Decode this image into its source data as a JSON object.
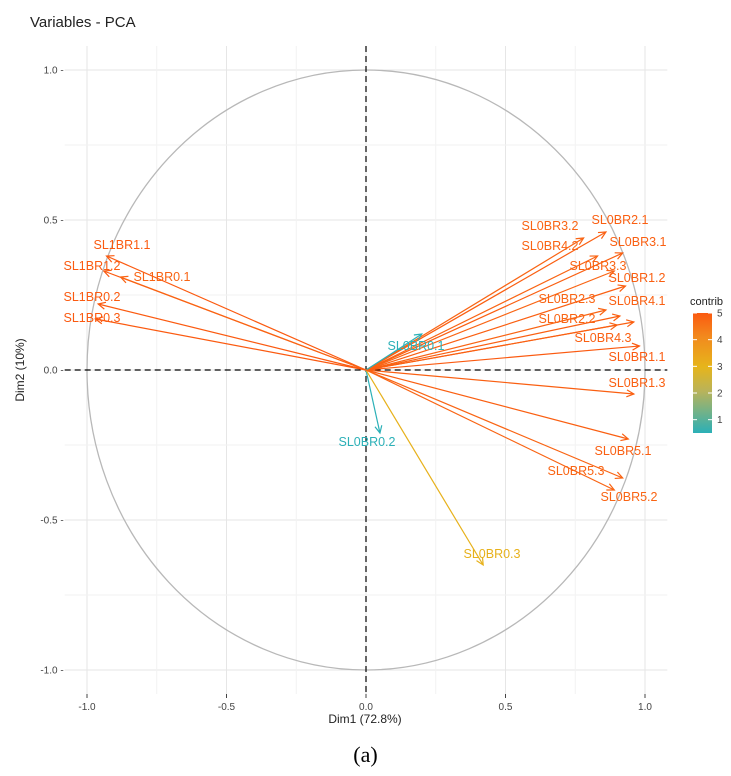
{
  "caption": "(a)",
  "chart_data": {
    "type": "scatter",
    "subtype": "pca-variable-correlation-circle",
    "title": "Variables - PCA",
    "xlabel": "Dim1 (72.8%)",
    "ylabel": "Dim2 (10%)",
    "xlim": [
      -1.08,
      1.08
    ],
    "ylim": [
      -1.08,
      1.08
    ],
    "x_ticks": [
      -1.0,
      -0.5,
      0.0,
      0.5,
      1.0
    ],
    "x_tick_labels": [
      "-1.0",
      "-0.5",
      "0.0",
      "0.5",
      "1.0"
    ],
    "y_ticks": [
      -1.0,
      -0.5,
      0.0,
      0.5,
      1.0
    ],
    "y_tick_labels": [
      "-1.0 -",
      "-0.5 -",
      "0.0 -",
      "0.5 -",
      "1.0 -"
    ],
    "grid": true,
    "legend": {
      "title": "contrib",
      "position": "right",
      "ticks": [
        "1",
        "2",
        "3",
        "4",
        "5"
      ],
      "colors": [
        "#2bb0b7",
        "#b9b35a",
        "#e6b51b",
        "#f28a1e",
        "#fb5a10"
      ]
    },
    "variables": [
      {
        "name": "SL1BR1.1",
        "x": -0.93,
        "y": 0.38,
        "contrib": 5.0
      },
      {
        "name": "SL1BR1.2",
        "x": -0.94,
        "y": 0.33,
        "contrib": 5.0
      },
      {
        "name": "SL1BR0.1",
        "x": -0.88,
        "y": 0.31,
        "contrib": 4.8
      },
      {
        "name": "SL1BR0.2",
        "x": -0.96,
        "y": 0.22,
        "contrib": 5.0
      },
      {
        "name": "SL1BR0.3",
        "x": -0.97,
        "y": 0.17,
        "contrib": 5.0
      },
      {
        "name": "SL0BR3.2",
        "x": 0.78,
        "y": 0.44,
        "contrib": 4.8
      },
      {
        "name": "SL0BR2.1",
        "x": 0.86,
        "y": 0.46,
        "contrib": 4.9
      },
      {
        "name": "SL0BR4.2",
        "x": 0.83,
        "y": 0.38,
        "contrib": 4.8
      },
      {
        "name": "SL0BR3.1",
        "x": 0.92,
        "y": 0.39,
        "contrib": 4.9
      },
      {
        "name": "SL0BR3.3",
        "x": 0.89,
        "y": 0.33,
        "contrib": 4.8
      },
      {
        "name": "SL0BR1.2",
        "x": 0.93,
        "y": 0.28,
        "contrib": 4.9
      },
      {
        "name": "SL0BR2.3",
        "x": 0.86,
        "y": 0.2,
        "contrib": 4.8
      },
      {
        "name": "SL0BR4.1",
        "x": 0.91,
        "y": 0.18,
        "contrib": 4.9
      },
      {
        "name": "SL0BR2.2",
        "x": 0.9,
        "y": 0.15,
        "contrib": 4.8
      },
      {
        "name": "SL0BR4.3",
        "x": 0.96,
        "y": 0.16,
        "contrib": 4.9
      },
      {
        "name": "SL0BR1.1",
        "x": 0.98,
        "y": 0.08,
        "contrib": 5.0
      },
      {
        "name": "SL0BR1.3",
        "x": 0.96,
        "y": -0.08,
        "contrib": 4.9
      },
      {
        "name": "SL0BR0.1",
        "x": 0.2,
        "y": 0.12,
        "contrib": 0.5
      },
      {
        "name": "SL0BR0.2",
        "x": 0.05,
        "y": -0.21,
        "contrib": 0.5
      },
      {
        "name": "SL0BR0.3",
        "x": 0.42,
        "y": -0.65,
        "contrib": 3.1
      },
      {
        "name": "SL0BR5.1",
        "x": 0.94,
        "y": -0.23,
        "contrib": 4.9
      },
      {
        "name": "SL0BR5.3",
        "x": 0.92,
        "y": -0.36,
        "contrib": 4.8
      },
      {
        "name": "SL0BR5.2",
        "x": 0.89,
        "y": -0.4,
        "contrib": 4.8
      }
    ]
  }
}
